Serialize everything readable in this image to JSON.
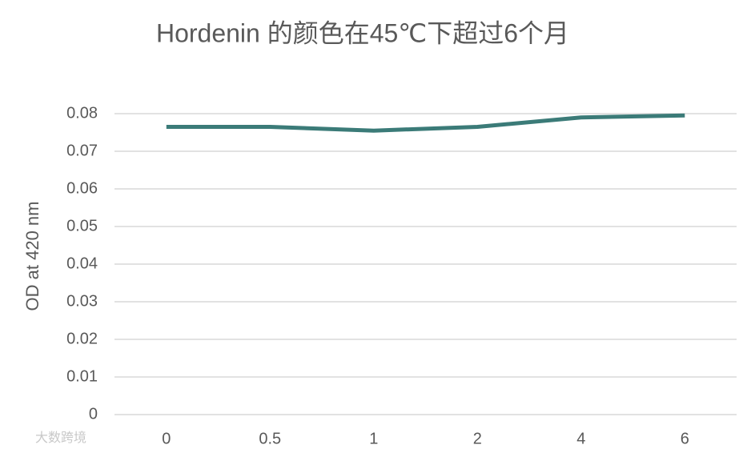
{
  "chart_data": {
    "type": "line",
    "title": "Hordenin 的颜色在45℃下超过6个月",
    "y_label": "OD at 420 nm",
    "categories": [
      "0",
      "0.5",
      "1",
      "2",
      "4",
      "6"
    ],
    "series": [
      {
        "name": "OD",
        "color": "#3b7b78",
        "values": [
          0.0765,
          0.0765,
          0.0755,
          0.0765,
          0.079,
          0.0795
        ]
      }
    ],
    "ylim": [
      0,
      0.08
    ],
    "yticks": [
      0,
      0.01,
      0.02,
      0.03,
      0.04,
      0.05,
      0.06,
      0.07,
      0.08
    ],
    "grid": true,
    "watermark": "大数跨境"
  }
}
